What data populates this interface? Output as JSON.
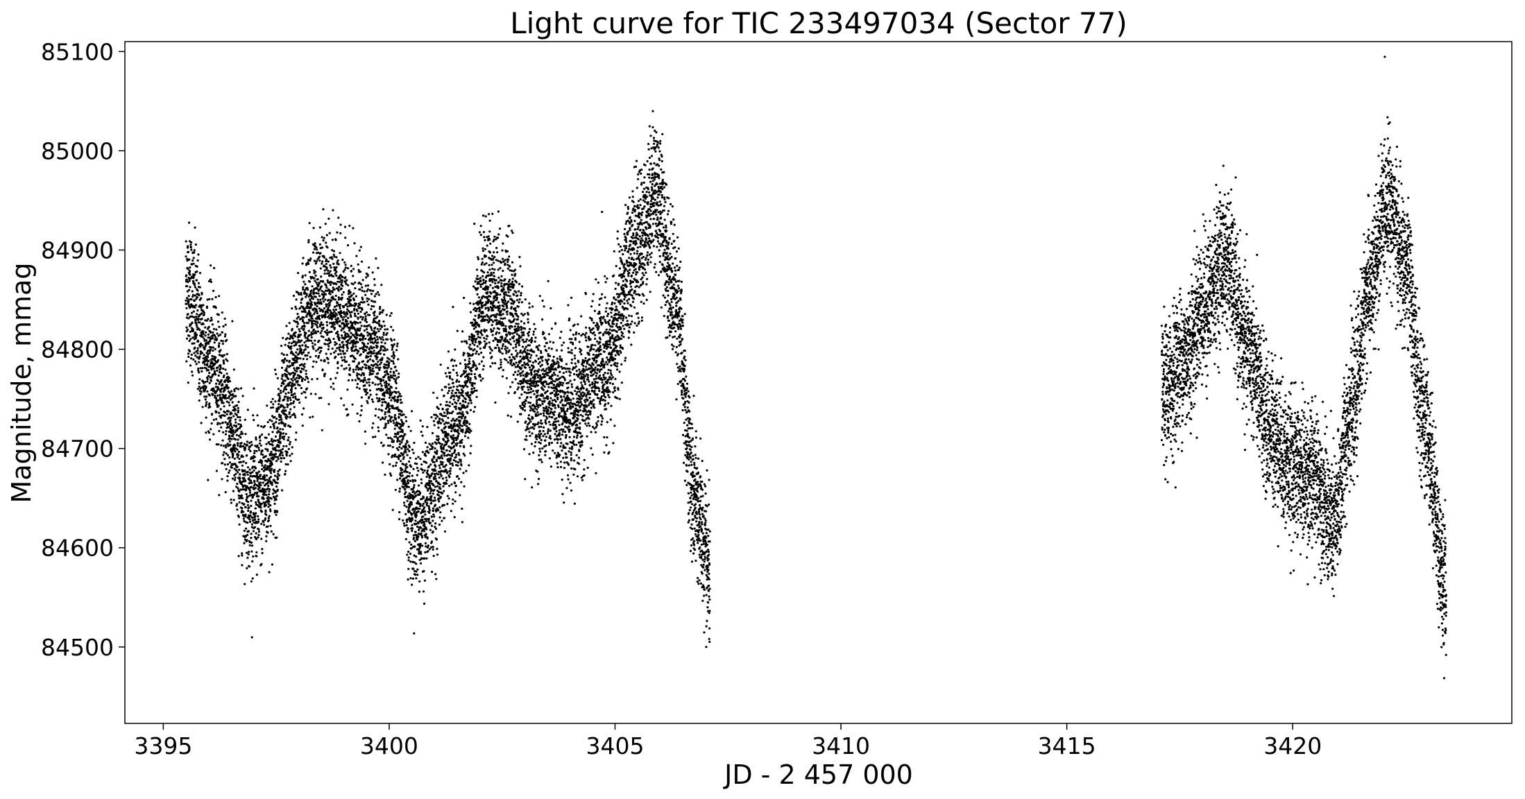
{
  "chart_data": {
    "type": "scatter",
    "title": "Light curve for TIC 233497034 (Sector 77)",
    "xlabel": "JD - 2 457 000",
    "ylabel": "Magnitude, mmag",
    "xlim": [
      3394.15,
      3424.85
    ],
    "ylim": [
      84423,
      85110
    ],
    "xticks": [
      3395,
      3400,
      3405,
      3410,
      3415,
      3420
    ],
    "xtick_labels": [
      "3395",
      "3400",
      "3405",
      "3410",
      "3415",
      "3420"
    ],
    "yticks": [
      84500,
      84600,
      84700,
      84800,
      84900,
      85000,
      85100
    ],
    "ytick_labels": [
      "84500",
      "84600",
      "84700",
      "84800",
      "84900",
      "85000",
      "85100"
    ],
    "y_inverted": false,
    "grid": false,
    "marker_color": "#000000",
    "series": [
      {
        "segments": [
          {
            "x_range": [
              3395.5,
              3407.1
            ],
            "x": [
              3395.5,
              3396.0,
              3397.0,
              3398.5,
              3399.5,
              3400.0,
              3400.6,
              3401.5,
              3402.2,
              3402.6,
              3403.2,
              3404.0,
              3404.8,
              3405.5,
              3405.9,
              3406.3,
              3406.8,
              3407.1
            ],
            "y": [
              84860,
              84790,
              84650,
              84850,
              84810,
              84760,
              84630,
              84720,
              84860,
              84840,
              84760,
              84740,
              84790,
              84900,
              84960,
              84860,
              84640,
              84570
            ],
            "scatter": 35
          },
          {
            "x_range": [
              3417.1,
              3423.4
            ],
            "x": [
              3417.1,
              3417.6,
              3418.0,
              3418.5,
              3419.0,
              3419.5,
              3420.0,
              3420.5,
              3420.9,
              3421.3,
              3421.7,
              3422.1,
              3422.5,
              3422.9,
              3423.4
            ],
            "y": [
              84750,
              84790,
              84840,
              84890,
              84800,
              84720,
              84680,
              84670,
              84620,
              84740,
              84860,
              84950,
              84880,
              84730,
              84560
            ],
            "scatter": 35
          }
        ]
      }
    ]
  }
}
